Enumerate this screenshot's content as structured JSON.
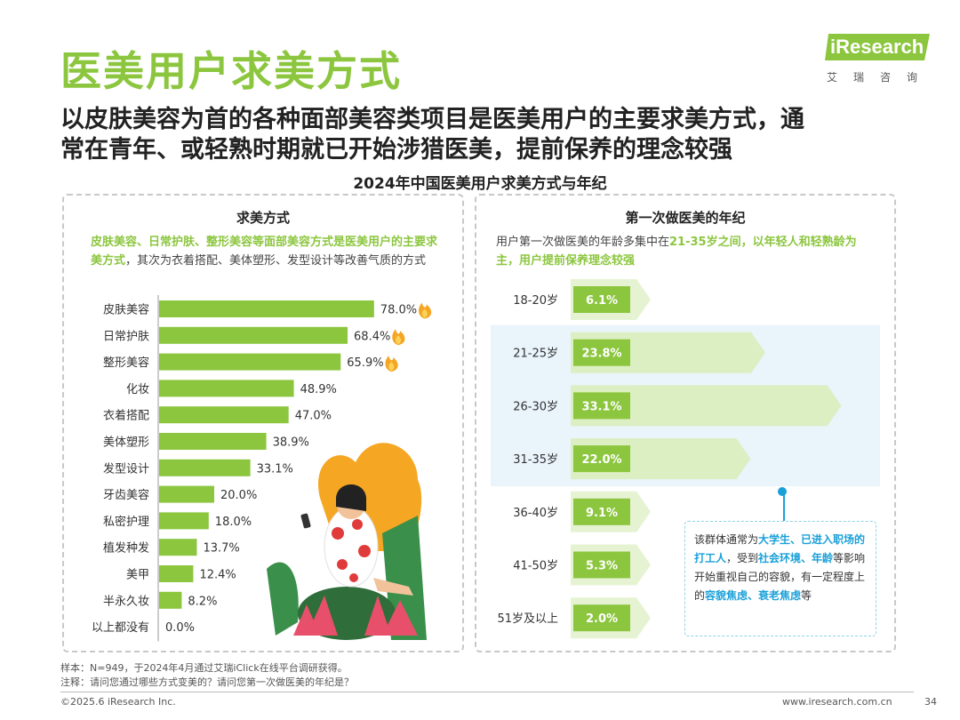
{
  "page_title": "医美用户求美方式",
  "logo": {
    "name": "iResearch",
    "cn": "艾瑞咨询"
  },
  "subtitle_line1": "以皮肤美容为首的各种面部美容类项目是医美用户的主要求美方式，通",
  "subtitle_line2": "常在青年、或轻熟时期就已开始涉猎医美，提前保养的理念较强",
  "chart_title": "2024年中国医美用户求美方式与年纪",
  "left_panel": {
    "heading": "求美方式",
    "note_highlight": "皮肤美容、日常护肤、整形美容等面部美容方式是医美用户的主要求美方式",
    "note_rest": "，其次为衣着搭配、美体塑形、发型设计等改善气质的方式"
  },
  "right_panel": {
    "heading": "第一次做医美的年纪",
    "note_start": "用户第一次做医美的年龄多集中在",
    "note_highlight": "21-35岁之间，以年轻人和轻熟龄为主，用户提前保养理念较强",
    "callout": {
      "t1": "该群体通常为",
      "h1": "大学生、已进入职场的打工人",
      "t2": "，受到",
      "h2": "社会环境、年龄",
      "t3": "等影响开始重视自己的容貌，有一定程度上的",
      "h3": "容貌焦虑、衰老焦虑",
      "t4": "等"
    }
  },
  "chart_data": [
    {
      "type": "bar",
      "orientation": "horizontal",
      "title": "求美方式",
      "categories": [
        "皮肤美容",
        "日常护肤",
        "整形美容",
        "化妆",
        "衣着搭配",
        "美体塑形",
        "发型设计",
        "牙齿美容",
        "私密护理",
        "植发种发",
        "美甲",
        "半永久妆",
        "以上都没有"
      ],
      "values": [
        78.0,
        68.4,
        65.9,
        48.9,
        47.0,
        38.9,
        33.1,
        20.0,
        18.0,
        13.7,
        12.4,
        8.2,
        0.0
      ],
      "labels": [
        "78.0%",
        "68.4%",
        "65.9%",
        "48.9%",
        "47.0%",
        "38.9%",
        "33.1%",
        "20.0%",
        "18.0%",
        "13.7%",
        "12.4%",
        "8.2%",
        "0.0%"
      ],
      "unit": "%",
      "xlim": [
        0,
        100
      ],
      "highlight_top": 3,
      "color": "#8cc63f"
    },
    {
      "type": "bar",
      "orientation": "horizontal",
      "style": "arrow",
      "title": "第一次做医美的年纪",
      "categories": [
        "18-20岁",
        "21-25岁",
        "26-30岁",
        "31-35岁",
        "36-40岁",
        "41-50岁",
        "51岁及以上"
      ],
      "values": [
        6.1,
        23.8,
        33.1,
        22.0,
        9.1,
        5.3,
        2.0
      ],
      "labels": [
        "6.1%",
        "23.8%",
        "33.1%",
        "22.0%",
        "9.1%",
        "5.3%",
        "2.0%"
      ],
      "unit": "%",
      "highlighted_categories": [
        "21-25岁",
        "26-30岁",
        "31-35岁"
      ],
      "color": "#8cc63f"
    }
  ],
  "footnotes": {
    "sample": "样本：N=949，于2024年4月通过艾瑞iClick在线平台调研获得。",
    "note": "注释：请问您通过哪些方式变美的？请问您第一次做医美的年纪是？"
  },
  "footer": {
    "copyright": "©2025.6 iResearch Inc.",
    "site": "www.iresearch.com.cn",
    "page": "34"
  }
}
